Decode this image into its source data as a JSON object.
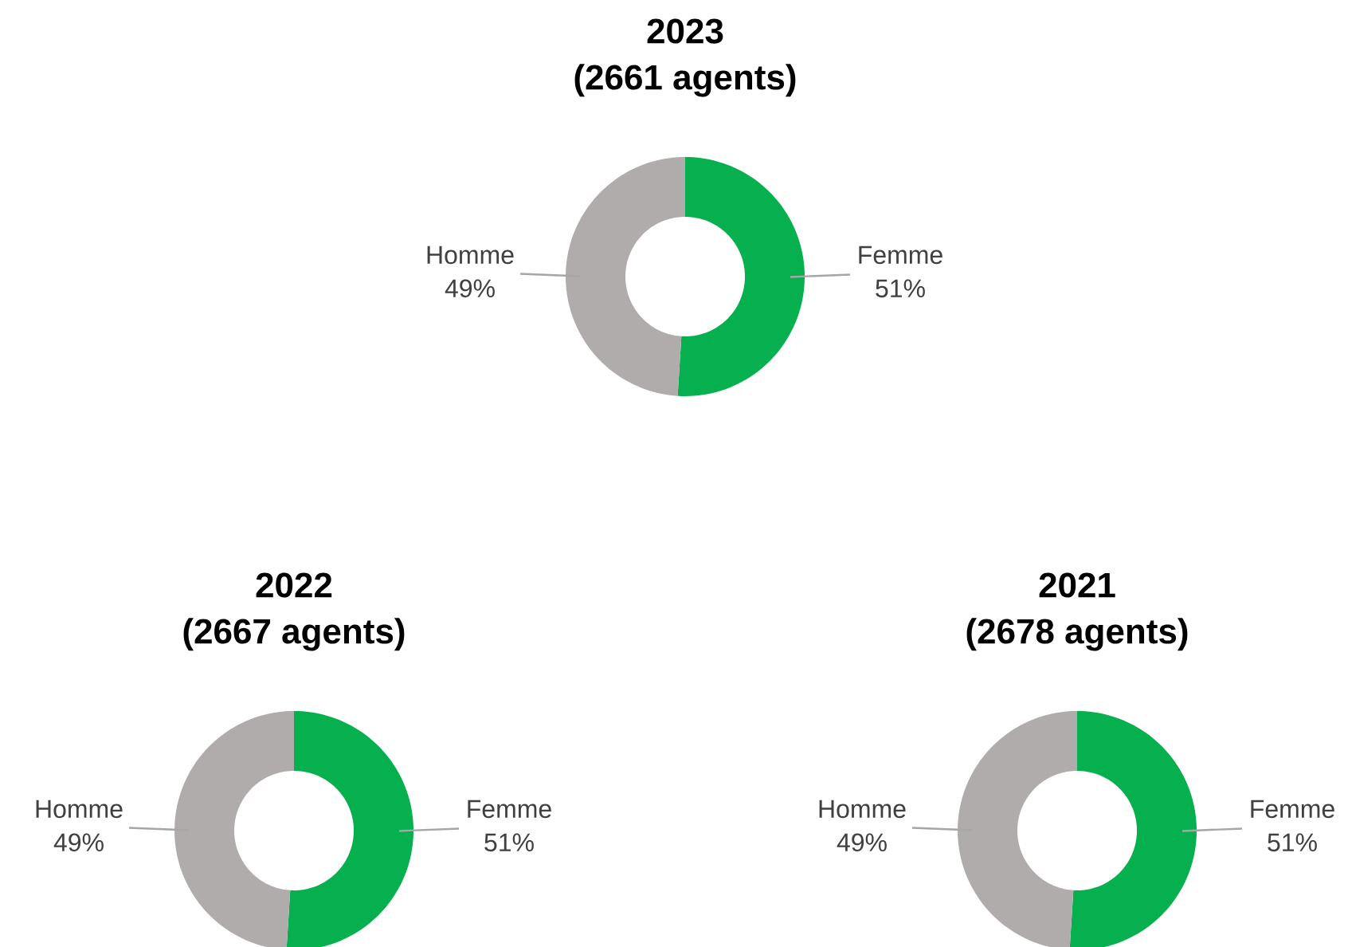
{
  "chart_data": [
    {
      "type": "donut",
      "title": "2023",
      "subtitle": "(2661 agents)",
      "categories": [
        "Femme",
        "Homme"
      ],
      "values": [
        51,
        49
      ],
      "colors": [
        "#07b04e",
        "#b0acab"
      ],
      "value_labels": [
        "51%",
        "49%"
      ]
    },
    {
      "type": "donut",
      "title": "2022",
      "subtitle": "(2667 agents)",
      "categories": [
        "Femme",
        "Homme"
      ],
      "values": [
        51,
        49
      ],
      "colors": [
        "#07b04e",
        "#b0acab"
      ],
      "value_labels": [
        "51%",
        "49%"
      ]
    },
    {
      "type": "donut",
      "title": "2021",
      "subtitle": "(2678 agents)",
      "categories": [
        "Femme",
        "Homme"
      ],
      "values": [
        51,
        49
      ],
      "colors": [
        "#07b04e",
        "#b0acab"
      ],
      "value_labels": [
        "51%",
        "49%"
      ]
    }
  ]
}
